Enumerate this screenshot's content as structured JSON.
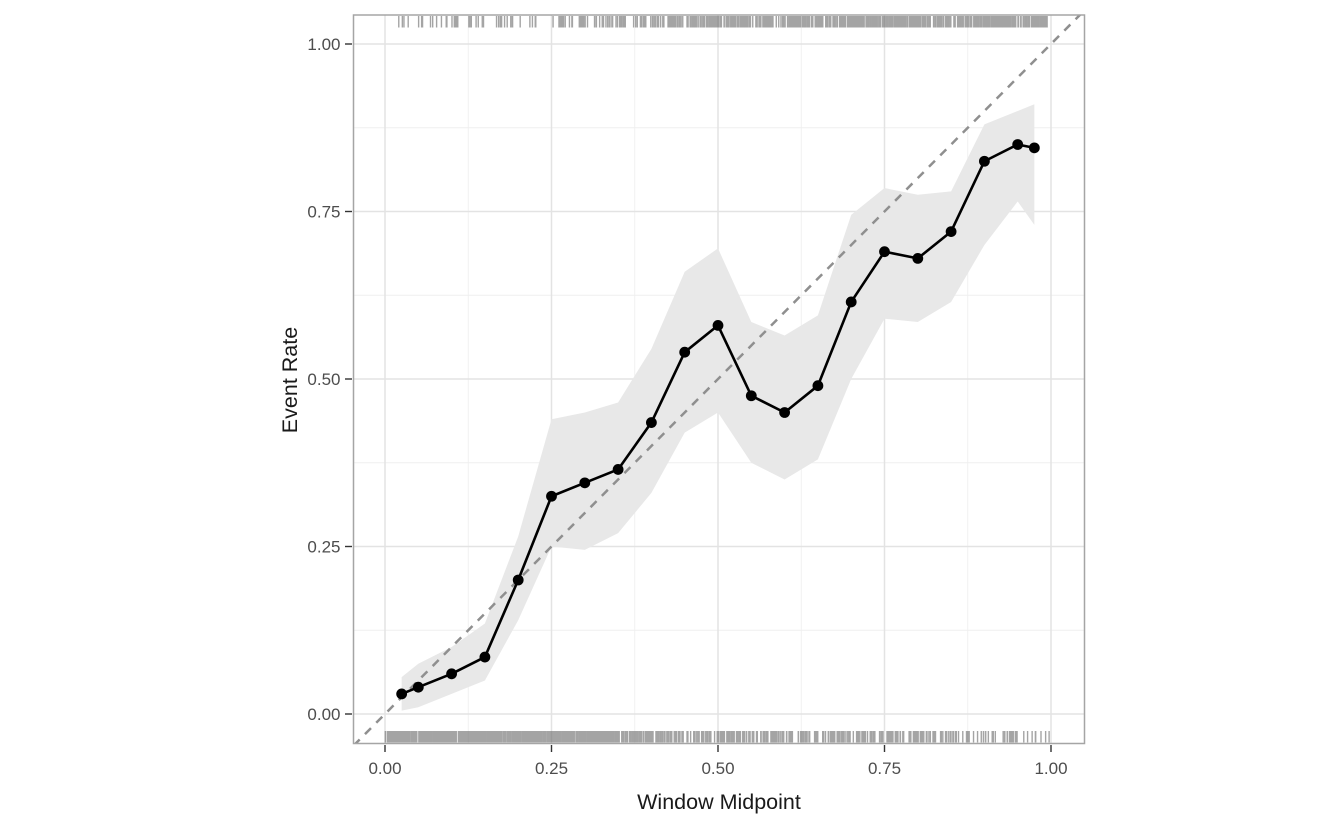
{
  "page": {
    "background": "#ffffff"
  },
  "chart_data": {
    "type": "line",
    "title": "",
    "xlabel": "Window Midpoint",
    "ylabel": "Event Rate",
    "x_tick_values": [
      0,
      0.25,
      0.5,
      0.75,
      1
    ],
    "x_tick_labels": [
      "0.00",
      "0.25",
      "0.50",
      "0.75",
      "1.00"
    ],
    "y_tick_values": [
      0,
      0.25,
      0.5,
      0.75,
      1
    ],
    "y_tick_labels": [
      "0.00",
      "0.25",
      "0.50",
      "0.75",
      "1.00"
    ],
    "minor_tick_values": [
      0.125,
      0.375,
      0.625,
      0.875
    ],
    "xlim": [
      -0.047,
      1.05
    ],
    "ylim": [
      -0.044,
      1.043
    ],
    "grid": true,
    "legend": "none",
    "series": [
      {
        "name": "event-rate-curve",
        "x": [
          0.025,
          0.05,
          0.1,
          0.15,
          0.2,
          0.25,
          0.3,
          0.35,
          0.4,
          0.45,
          0.5,
          0.55,
          0.6,
          0.65,
          0.7,
          0.75,
          0.8,
          0.85,
          0.9,
          0.95,
          0.975
        ],
        "y": [
          0.03,
          0.04,
          0.06,
          0.085,
          0.2,
          0.325,
          0.345,
          0.365,
          0.435,
          0.54,
          0.58,
          0.475,
          0.45,
          0.49,
          0.615,
          0.69,
          0.68,
          0.72,
          0.825,
          0.85,
          0.845
        ]
      }
    ],
    "ribbon": {
      "name": "confidence-band",
      "x": [
        0.025,
        0.05,
        0.1,
        0.15,
        0.2,
        0.25,
        0.3,
        0.35,
        0.4,
        0.45,
        0.5,
        0.55,
        0.6,
        0.65,
        0.7,
        0.75,
        0.8,
        0.85,
        0.9,
        0.95,
        0.975
      ],
      "lower": [
        0.005,
        0.01,
        0.03,
        0.05,
        0.14,
        0.25,
        0.245,
        0.27,
        0.33,
        0.42,
        0.45,
        0.375,
        0.35,
        0.38,
        0.5,
        0.59,
        0.585,
        0.615,
        0.7,
        0.765,
        0.73
      ],
      "upper": [
        0.055,
        0.075,
        0.1,
        0.135,
        0.265,
        0.44,
        0.45,
        0.465,
        0.545,
        0.66,
        0.695,
        0.585,
        0.565,
        0.595,
        0.745,
        0.785,
        0.775,
        0.78,
        0.88,
        0.9,
        0.91
      ]
    },
    "reference_line": {
      "name": "identity-line",
      "type": "diagonal-y-equals-x",
      "style": "dashed",
      "x1": -0.047,
      "y1": -0.047,
      "x2": 1.05,
      "y2": 1.05
    },
    "rug": {
      "top_segments": [
        {
          "from": 0.005,
          "to": 0.04,
          "count": 4
        },
        {
          "from": 0.04,
          "to": 0.1,
          "count": 9
        },
        {
          "from": 0.1,
          "to": 0.25,
          "count": 28
        },
        {
          "from": 0.25,
          "to": 0.4,
          "count": 55
        },
        {
          "from": 0.4,
          "to": 0.6,
          "count": 150
        },
        {
          "from": 0.6,
          "to": 0.8,
          "count": 230
        },
        {
          "from": 0.8,
          "to": 0.995,
          "count": 240
        }
      ],
      "bottom_segments": [
        {
          "from": 0.0,
          "to": 0.35,
          "count": 700
        },
        {
          "from": 0.35,
          "to": 0.6,
          "count": 200
        },
        {
          "from": 0.6,
          "to": 0.78,
          "count": 110
        },
        {
          "from": 0.78,
          "to": 0.92,
          "count": 60
        },
        {
          "from": 0.92,
          "to": 0.999,
          "count": 25
        }
      ]
    },
    "style": {
      "line_color": "#000000",
      "point_color": "#000000",
      "ribbon_color": "#e8e8e8",
      "reference_color": "#8f8f8f",
      "grid_major_color": "#e3e3e3",
      "grid_minor_color": "#efefef",
      "panel_border_color": "#a5a5a5",
      "rug_color": "#6e6e6e",
      "axis_tick_color": "#333333",
      "tick_label_color": "#4d4d4d",
      "axis_title_color": "#1a1a1a"
    }
  }
}
